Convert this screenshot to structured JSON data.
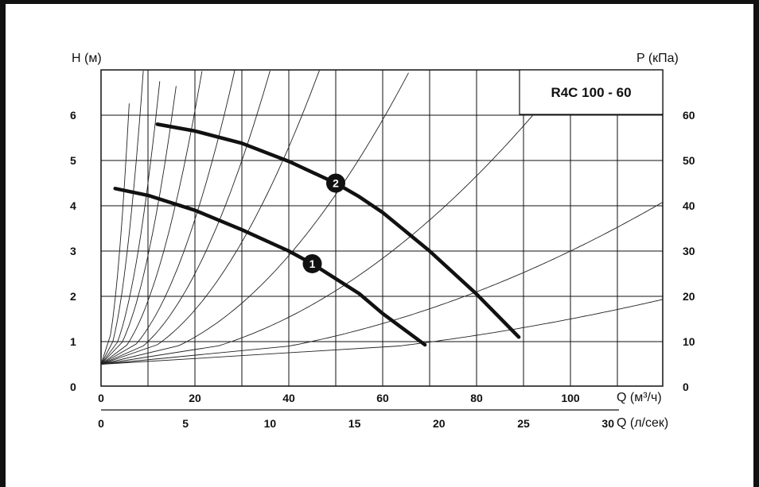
{
  "chart_data": {
    "type": "line",
    "title": "R4C 100 - 60",
    "y_left": {
      "label": "H (м)",
      "range": [
        0,
        6.5
      ],
      "ticks": [
        "0",
        "1",
        "2",
        "3",
        "4",
        "5",
        "6"
      ]
    },
    "y_right": {
      "label": "P (кПа)",
      "range": [
        0,
        65
      ],
      "ticks": [
        "0",
        "10",
        "20",
        "30",
        "40",
        "50",
        "60"
      ]
    },
    "x_top": {
      "label": "Q (м³/ч)",
      "range": [
        0,
        120
      ],
      "ticks": [
        "0",
        "20",
        "40",
        "60",
        "80",
        "100"
      ]
    },
    "x_bottom": {
      "label": "Q (л/сек)",
      "range": [
        0,
        33.33
      ],
      "ticks": [
        "0",
        "5",
        "10",
        "15",
        "20",
        "25",
        "30"
      ]
    },
    "grid": true,
    "series": [
      {
        "label": "1",
        "x": [
          3,
          10,
          20,
          30,
          40,
          45,
          50,
          55,
          60,
          69
        ],
        "y": [
          4.38,
          4.23,
          3.9,
          3.47,
          3.0,
          2.72,
          2.39,
          2.06,
          1.62,
          0.93
        ]
      },
      {
        "label": "2",
        "x": [
          12,
          20,
          30,
          40,
          50,
          55,
          60,
          70,
          80,
          89
        ],
        "y": [
          5.8,
          5.65,
          5.38,
          4.98,
          4.5,
          4.2,
          3.85,
          3.0,
          2.05,
          1.1
        ]
      }
    ],
    "system_curves_coef": [
      1.6,
      0.8,
      0.4,
      0.24,
      0.14,
      0.08,
      0.05,
      0.03,
      0.015,
      0.0065,
      0.0025,
      0.001
    ]
  }
}
